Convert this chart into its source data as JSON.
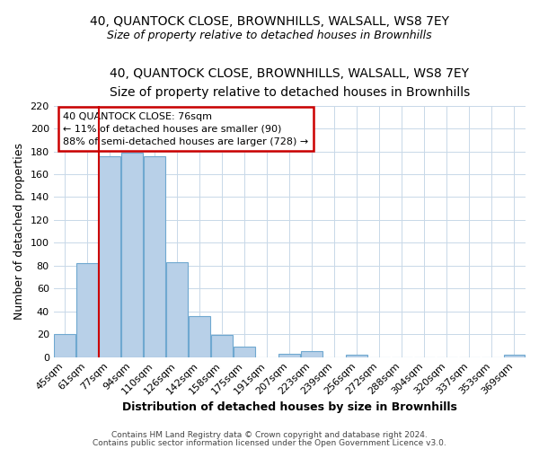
{
  "title_line1": "40, QUANTOCK CLOSE, BROWNHILLS, WALSALL, WS8 7EY",
  "title_line2": "Size of property relative to detached houses in Brownhills",
  "xlabel": "Distribution of detached houses by size in Brownhills",
  "ylabel": "Number of detached properties",
  "bar_labels": [
    "45sqm",
    "61sqm",
    "77sqm",
    "94sqm",
    "110sqm",
    "126sqm",
    "142sqm",
    "158sqm",
    "175sqm",
    "191sqm",
    "207sqm",
    "223sqm",
    "239sqm",
    "256sqm",
    "272sqm",
    "288sqm",
    "304sqm",
    "320sqm",
    "337sqm",
    "353sqm",
    "369sqm"
  ],
  "bar_values": [
    20,
    82,
    176,
    179,
    176,
    83,
    36,
    19,
    9,
    0,
    3,
    5,
    0,
    2,
    0,
    0,
    0,
    0,
    0,
    0,
    2
  ],
  "bar_color": "#b8d0e8",
  "bar_edge_color": "#6fa8d0",
  "highlight_color": "#cc0000",
  "vline_bar_index": 2,
  "annotation_title": "40 QUANTOCK CLOSE: 76sqm",
  "annotation_line1": "← 11% of detached houses are smaller (90)",
  "annotation_line2": "88% of semi-detached houses are larger (728) →",
  "annotation_box_color": "#ffffff",
  "annotation_box_edge": "#cc0000",
  "ylim": [
    0,
    220
  ],
  "yticks": [
    0,
    20,
    40,
    60,
    80,
    100,
    120,
    140,
    160,
    180,
    200,
    220
  ],
  "footer_line1": "Contains HM Land Registry data © Crown copyright and database right 2024.",
  "footer_line2": "Contains public sector information licensed under the Open Government Licence v3.0.",
  "background_color": "#ffffff",
  "grid_color": "#c8d8e8",
  "figsize": [
    6.0,
    5.0
  ],
  "dpi": 100
}
